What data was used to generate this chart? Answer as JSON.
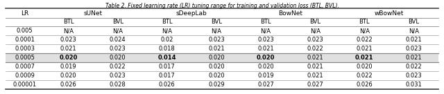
{
  "title": "Table 2. Fixed learning rate (LR) tuning range for training and validation loss (BTL, BVL).",
  "col_groups": [
    "sUNet",
    "sDeepLab",
    "BowNet",
    "wBowNet"
  ],
  "lr_col": "LR",
  "lr_values": [
    "0.005",
    "0.0001",
    "0.0003",
    "0.0005",
    "0.0007",
    "0.0009",
    "0.00001"
  ],
  "data": {
    "sUNet": {
      "BTL": [
        "N/A",
        "0.023",
        "0.021",
        "0.020",
        "0.019",
        "0.020",
        "0.026"
      ],
      "BVL": [
        "N/A",
        "0.024",
        "0.023",
        "0.020",
        "0.022",
        "0.023",
        "0.028"
      ]
    },
    "sDeepLab": {
      "BTL": [
        "N/A",
        "0.02",
        "0.018",
        "0.014",
        "0.017",
        "0.017",
        "0.026"
      ],
      "BVL": [
        "N/A",
        "0.023",
        "0.021",
        "0.020",
        "0.020",
        "0.020",
        "0.029"
      ]
    },
    "BowNet": {
      "BTL": [
        "N/A",
        "0.023",
        "0.021",
        "0.020",
        "0.020",
        "0.019",
        "0.027"
      ],
      "BVL": [
        "N/A",
        "0.023",
        "0.022",
        "0.021",
        "0.021",
        "0.021",
        "0.027"
      ]
    },
    "wBowNet": {
      "BTL": [
        "N/A",
        "0.022",
        "0.021",
        "0.021",
        "0.020",
        "0.022",
        "0.026"
      ],
      "BVL": [
        "N/A",
        "0.021",
        "0.023",
        "0.021",
        "0.022",
        "0.023",
        "0.031"
      ]
    }
  },
  "highlight_row_idx": 3,
  "bold_btl_row_idx": 3,
  "bg_color": "#ffffff",
  "highlight_bg": "#e0e0e0",
  "line_color": "#888888",
  "thick_line_color": "#444444",
  "font_size": 6.0,
  "title_font_size": 5.5
}
